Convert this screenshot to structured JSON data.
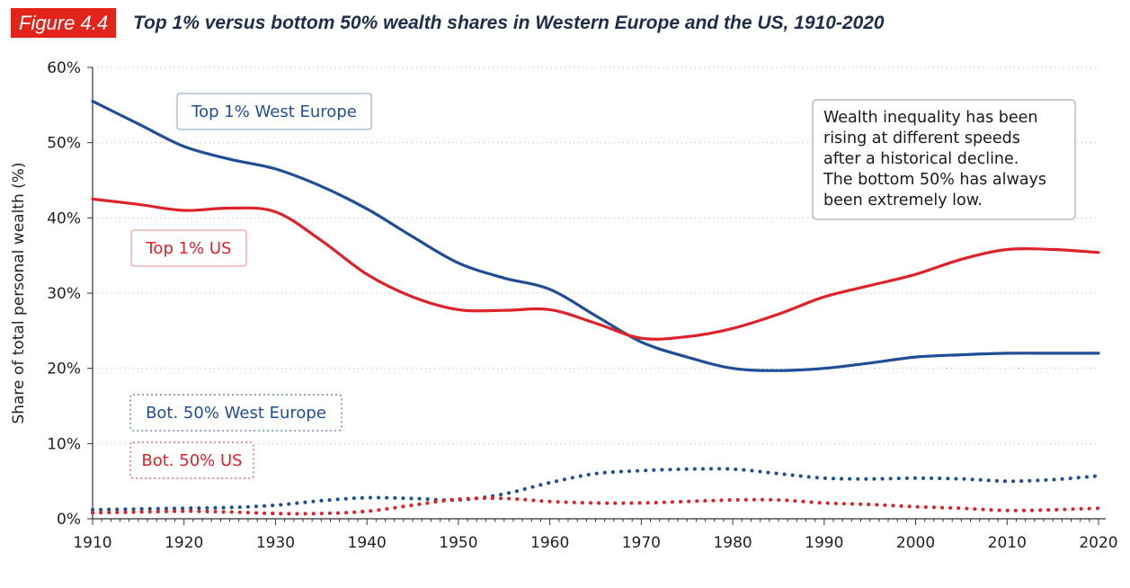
{
  "figure_label": "Figure 4.4",
  "figure_title": "Top 1% versus bottom 50% wealth shares in Western Europe and the US, 1910-2020",
  "chart_data": {
    "type": "line",
    "title": "Top 1% versus bottom 50% wealth shares in Western Europe and the US, 1910-2020",
    "ylabel": "Share of total personal wealth (%)",
    "xlabel": "",
    "xlim": [
      1910,
      2020
    ],
    "ylim": [
      0,
      60
    ],
    "x_ticks": [
      1910,
      1920,
      1930,
      1940,
      1950,
      1960,
      1970,
      1980,
      1990,
      2000,
      2010,
      2020
    ],
    "y_ticks": [
      0,
      10,
      20,
      30,
      40,
      50,
      60
    ],
    "y_tick_labels": [
      "0%",
      "10%",
      "20%",
      "30%",
      "40%",
      "50%",
      "60%"
    ],
    "grid": "horizontal dotted",
    "series": [
      {
        "name": "Top 1% West Europe",
        "color": "#1f4e96",
        "style": "solid",
        "x": [
          1910,
          1915,
          1920,
          1925,
          1930,
          1935,
          1940,
          1945,
          1950,
          1955,
          1960,
          1965,
          1970,
          1975,
          1980,
          1985,
          1990,
          1995,
          2000,
          2005,
          2010,
          2015,
          2020
        ],
        "values": [
          55.5,
          52.5,
          49.5,
          47.8,
          46.5,
          44.2,
          41.2,
          37.5,
          34,
          32,
          30.5,
          27,
          23.5,
          21.5,
          20,
          19.7,
          20,
          20.7,
          21.5,
          21.8,
          22,
          22,
          22
        ]
      },
      {
        "name": "Top 1% US",
        "color": "#dd2229",
        "style": "solid",
        "x": [
          1910,
          1915,
          1920,
          1925,
          1930,
          1935,
          1940,
          1945,
          1950,
          1955,
          1960,
          1965,
          1970,
          1975,
          1980,
          1985,
          1990,
          1995,
          2000,
          2005,
          2010,
          2015,
          2020
        ],
        "values": [
          42.5,
          41.8,
          41,
          41.3,
          40.8,
          37,
          32.5,
          29.5,
          27.8,
          27.7,
          27.8,
          26,
          24,
          24.2,
          25.3,
          27.2,
          29.5,
          31,
          32.5,
          34.5,
          35.8,
          35.8,
          35.4
        ]
      },
      {
        "name": "Bot. 50% West Europe",
        "color": "#1f4e96",
        "style": "dotted",
        "x": [
          1910,
          1915,
          1920,
          1925,
          1930,
          1935,
          1940,
          1945,
          1950,
          1955,
          1960,
          1965,
          1970,
          1975,
          1980,
          1985,
          1990,
          1995,
          2000,
          2005,
          2010,
          2015,
          2020
        ],
        "values": [
          1.2,
          1.3,
          1.4,
          1.5,
          1.8,
          2.4,
          2.8,
          2.7,
          2.5,
          3.3,
          4.8,
          6,
          6.4,
          6.6,
          6.6,
          6,
          5.4,
          5.3,
          5.4,
          5.3,
          5,
          5.2,
          5.7
        ]
      },
      {
        "name": "Bot. 50% US",
        "color": "#dd2229",
        "style": "dotted",
        "x": [
          1910,
          1915,
          1920,
          1925,
          1930,
          1935,
          1940,
          1945,
          1950,
          1955,
          1960,
          1965,
          1970,
          1975,
          1980,
          1985,
          1990,
          1995,
          2000,
          2005,
          2010,
          2015,
          2020
        ],
        "values": [
          0.8,
          0.9,
          1,
          0.9,
          0.7,
          0.7,
          1,
          1.8,
          2.6,
          2.7,
          2.3,
          2.1,
          2.1,
          2.3,
          2.5,
          2.5,
          2.1,
          1.9,
          1.6,
          1.4,
          1.1,
          1.2,
          1.4
        ]
      }
    ],
    "series_labels": [
      {
        "series": 0,
        "text": "Top 1% West Europe",
        "border": "solid"
      },
      {
        "series": 1,
        "text": "Top 1% US",
        "border": "solid"
      },
      {
        "series": 2,
        "text": "Bot. 50% West Europe",
        "border": "dotted"
      },
      {
        "series": 3,
        "text": "Bot. 50% US",
        "border": "dotted"
      }
    ],
    "annotation": "Wealth inequality has been rising at different speeds after a historical decline. The bottom 50% has always been extremely low.",
    "annotation_lines": [
      "Wealth inequality has been",
      "rising at different speeds",
      "after a historical decline.",
      "The bottom 50% has always",
      "been extremely low."
    ]
  }
}
